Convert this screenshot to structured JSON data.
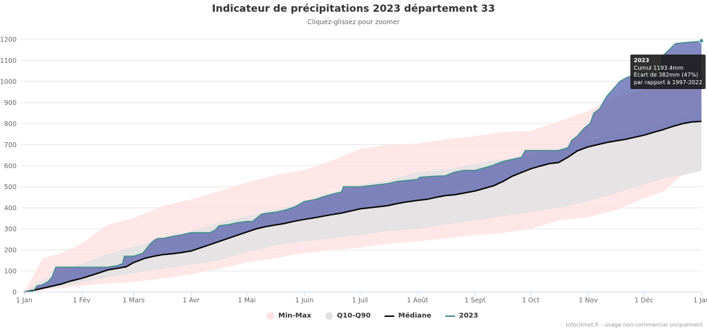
{
  "header": {
    "title": "Indicateur de précipitations 2023 département 33",
    "subtitle": "Cliquez-glissez pour zoomer"
  },
  "legend": {
    "minmax": "Min-Max",
    "q10q90": "Q10-Q90",
    "median": "Médiane",
    "year": "2023"
  },
  "tooltip": {
    "title": "2023",
    "line1": "Cumul 1193.4mm",
    "line2": "Ecart de 382mm (47%)",
    "line3": "par rapport à 1997-2022"
  },
  "credits": "infoclimat.fr - usage non-commercial uniquement",
  "colors": {
    "minmax": "#ffe1e1",
    "q10q90": "#e2e2e2",
    "median": "#000000",
    "year_line": "#3e8f8a",
    "year_fill": "#5a62ad"
  },
  "chart_data": {
    "type": "area",
    "title": "Indicateur de précipitations 2023 département 33",
    "subtitle": "Cliquez-glissez pour zoomer",
    "x_unit": "day-of-year",
    "x_ticks": [
      {
        "label": "1 Jan",
        "day": 0
      },
      {
        "label": "1 Fév",
        "day": 31
      },
      {
        "label": "1 Mars",
        "day": 59
      },
      {
        "label": "1 Avr",
        "day": 90
      },
      {
        "label": "1 Mai",
        "day": 120
      },
      {
        "label": "1 Juin",
        "day": 151
      },
      {
        "label": "1 Juil",
        "day": 181
      },
      {
        "label": "1 Août",
        "day": 212
      },
      {
        "label": "1 Sept",
        "day": 243
      },
      {
        "label": "1 Oct",
        "day": 273
      },
      {
        "label": "1 Nov",
        "day": 304
      },
      {
        "label": "1 Déc",
        "day": 334
      },
      {
        "label": "1 Jan",
        "day": 365
      }
    ],
    "ylim": [
      0,
      1200
    ],
    "y_ticks": [
      0,
      100,
      200,
      300,
      400,
      500,
      600,
      700,
      800,
      900,
      1000,
      1100,
      1200
    ],
    "grid": true,
    "legend_position": "bottom",
    "series": [
      {
        "name": "Min-Max",
        "kind": "range",
        "x": [
          0,
          5,
          10,
          20,
          31,
          45,
          59,
          75,
          90,
          105,
          120,
          135,
          151,
          166,
          181,
          196,
          212,
          227,
          243,
          258,
          273,
          288,
          304,
          319,
          334,
          345,
          355,
          365
        ],
        "low": [
          0,
          2,
          8,
          18,
          30,
          40,
          48,
          65,
          85,
          110,
          140,
          160,
          185,
          200,
          210,
          230,
          240,
          255,
          270,
          280,
          300,
          340,
          355,
          390,
          445,
          480,
          560,
          620
        ],
        "high": [
          0,
          80,
          160,
          185,
          230,
          320,
          350,
          410,
          440,
          480,
          520,
          555,
          580,
          625,
          680,
          700,
          705,
          725,
          740,
          760,
          765,
          810,
          860,
          930,
          960,
          1040,
          1070,
          1080
        ]
      },
      {
        "name": "Q10-Q90",
        "kind": "range",
        "x": [
          0,
          5,
          10,
          20,
          31,
          45,
          59,
          75,
          90,
          105,
          120,
          135,
          151,
          166,
          181,
          196,
          212,
          227,
          243,
          258,
          273,
          288,
          304,
          319,
          334,
          345,
          355,
          365
        ],
        "low": [
          0,
          5,
          15,
          28,
          45,
          70,
          90,
          110,
          130,
          150,
          190,
          220,
          240,
          255,
          270,
          290,
          300,
          320,
          340,
          360,
          380,
          400,
          430,
          470,
          510,
          540,
          555,
          575
        ],
        "high": [
          0,
          30,
          60,
          100,
          135,
          180,
          215,
          250,
          290,
          330,
          360,
          390,
          430,
          470,
          510,
          530,
          570,
          580,
          610,
          630,
          650,
          680,
          720,
          750,
          780,
          800,
          830,
          860
        ]
      },
      {
        "name": "Médiane",
        "kind": "line",
        "x": [
          0,
          5,
          10,
          15,
          20,
          25,
          31,
          40,
          45,
          50,
          55,
          59,
          65,
          70,
          75,
          80,
          85,
          90,
          95,
          100,
          105,
          110,
          115,
          120,
          125,
          130,
          135,
          140,
          145,
          151,
          156,
          161,
          166,
          171,
          176,
          181,
          186,
          191,
          196,
          201,
          206,
          212,
          217,
          222,
          227,
          232,
          237,
          243,
          248,
          253,
          258,
          263,
          268,
          273,
          278,
          283,
          288,
          293,
          298,
          304,
          309,
          314,
          319,
          324,
          329,
          334,
          339,
          344,
          349,
          355,
          360,
          365
        ],
        "values": [
          0,
          8,
          18,
          28,
          38,
          52,
          65,
          90,
          105,
          112,
          120,
          140,
          160,
          170,
          178,
          182,
          188,
          195,
          210,
          225,
          240,
          255,
          270,
          285,
          300,
          310,
          318,
          325,
          335,
          345,
          352,
          360,
          368,
          375,
          385,
          395,
          400,
          405,
          410,
          420,
          428,
          435,
          440,
          450,
          458,
          462,
          470,
          480,
          492,
          505,
          525,
          550,
          568,
          585,
          598,
          610,
          615,
          640,
          670,
          690,
          700,
          710,
          718,
          725,
          735,
          745,
          758,
          770,
          785,
          800,
          808,
          810
        ]
      },
      {
        "name": "2023",
        "kind": "line",
        "x": [
          0,
          5,
          7,
          10,
          13,
          15,
          17,
          20,
          25,
          31,
          40,
          44,
          45,
          50,
          53,
          54,
          59,
          64,
          68,
          70,
          72,
          75,
          80,
          85,
          90,
          95,
          100,
          103,
          105,
          110,
          115,
          120,
          123,
          125,
          128,
          131,
          136,
          141,
          146,
          151,
          157,
          161,
          166,
          171,
          172,
          181,
          186,
          191,
          196,
          201,
          206,
          212,
          213,
          221,
          227,
          232,
          237,
          243,
          248,
          252,
          258,
          263,
          268,
          270,
          276,
          283,
          288,
          293,
          295,
          298,
          302,
          305,
          307,
          310,
          314,
          317,
          321,
          325,
          329,
          330,
          334,
          342,
          344,
          351,
          356,
          363,
          365
        ],
        "values": [
          0,
          5,
          30,
          35,
          50,
          70,
          118,
          118,
          118,
          118,
          118,
          118,
          118,
          125,
          135,
          170,
          170,
          185,
          230,
          245,
          255,
          255,
          265,
          272,
          282,
          282,
          282,
          295,
          315,
          320,
          330,
          335,
          335,
          350,
          370,
          375,
          380,
          390,
          405,
          430,
          440,
          452,
          465,
          475,
          500,
          500,
          505,
          510,
          515,
          525,
          530,
          535,
          545,
          550,
          552,
          570,
          578,
          578,
          590,
          600,
          620,
          630,
          640,
          672,
          672,
          672,
          672,
          685,
          720,
          740,
          780,
          800,
          850,
          870,
          930,
          960,
          1000,
          1020,
          1030,
          1033,
          1033,
          1033,
          1120,
          1180,
          1185,
          1190,
          1193.4
        ]
      }
    ]
  }
}
